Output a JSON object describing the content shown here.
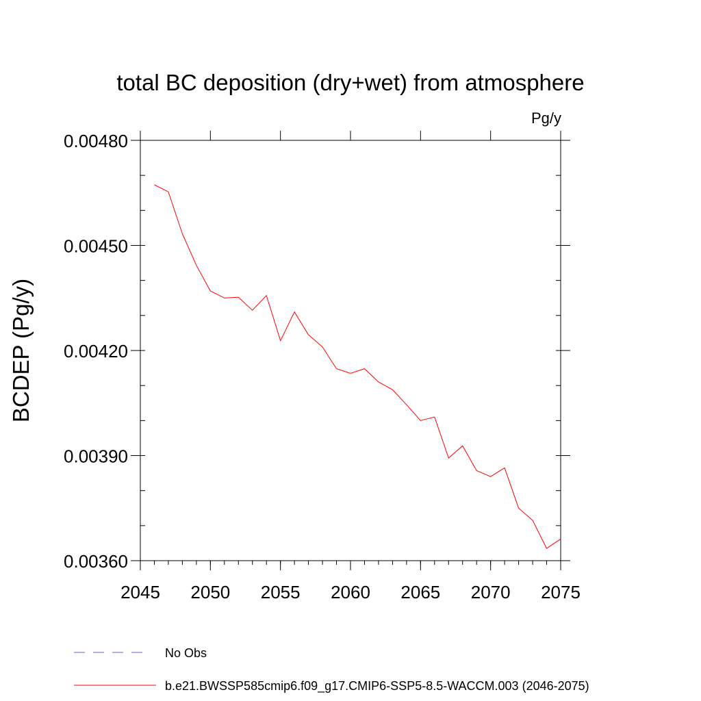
{
  "chart_data": {
    "type": "line",
    "title": "total BC deposition (dry+wet) from atmosphere",
    "units": "Pg/y",
    "ylabel": "BCDEP  (Pg/y)",
    "xlabel": "",
    "xlim": [
      2045,
      2075
    ],
    "ylim": [
      0.0036,
      0.0048
    ],
    "x_ticks": [
      2045,
      2050,
      2055,
      2060,
      2065,
      2070,
      2075
    ],
    "x_tick_labels": [
      "2045",
      "2050",
      "2055",
      "2060",
      "2065",
      "2070",
      "2075"
    ],
    "y_ticks": [
      0.0036,
      0.0039,
      0.0042,
      0.0045,
      0.0048
    ],
    "y_tick_labels": [
      "0.00360",
      "0.00390",
      "0.00420",
      "0.00450",
      "0.00480"
    ],
    "y_minor_step": 0.0001,
    "x_minor_step": 1,
    "grid": false,
    "legend_position": "bottom-left",
    "series": [
      {
        "name": "b.e21.BWSSP585cmip6.f09_g17.CMIP6-SSP5-8.5-WACCM.003 (2046-2075)",
        "color": "#ff0000",
        "style": "solid",
        "x": [
          2046,
          2047,
          2048,
          2049,
          2050,
          2051,
          2052,
          2053,
          2054,
          2055,
          2056,
          2057,
          2058,
          2059,
          2060,
          2061,
          2062,
          2063,
          2064,
          2065,
          2066,
          2067,
          2068,
          2069,
          2070,
          2071,
          2072,
          2073,
          2074,
          2075
        ],
        "y": [
          0.004673,
          0.004653,
          0.004533,
          0.004443,
          0.00437,
          0.00435,
          0.004352,
          0.004315,
          0.004357,
          0.004228,
          0.00431,
          0.004245,
          0.00421,
          0.004148,
          0.004135,
          0.004148,
          0.00411,
          0.004088,
          0.004045,
          0.004,
          0.00401,
          0.003893,
          0.003928,
          0.003857,
          0.00384,
          0.003865,
          0.00375,
          0.003715,
          0.003635,
          0.003662
        ]
      }
    ],
    "legend": [
      {
        "label": "No Obs",
        "color": "#6a5acd",
        "style": "dashed"
      },
      {
        "label": "b.e21.BWSSP585cmip6.f09_g17.CMIP6-SSP5-8.5-WACCM.003 (2046-2075)",
        "color": "#ff0000",
        "style": "solid"
      }
    ]
  }
}
